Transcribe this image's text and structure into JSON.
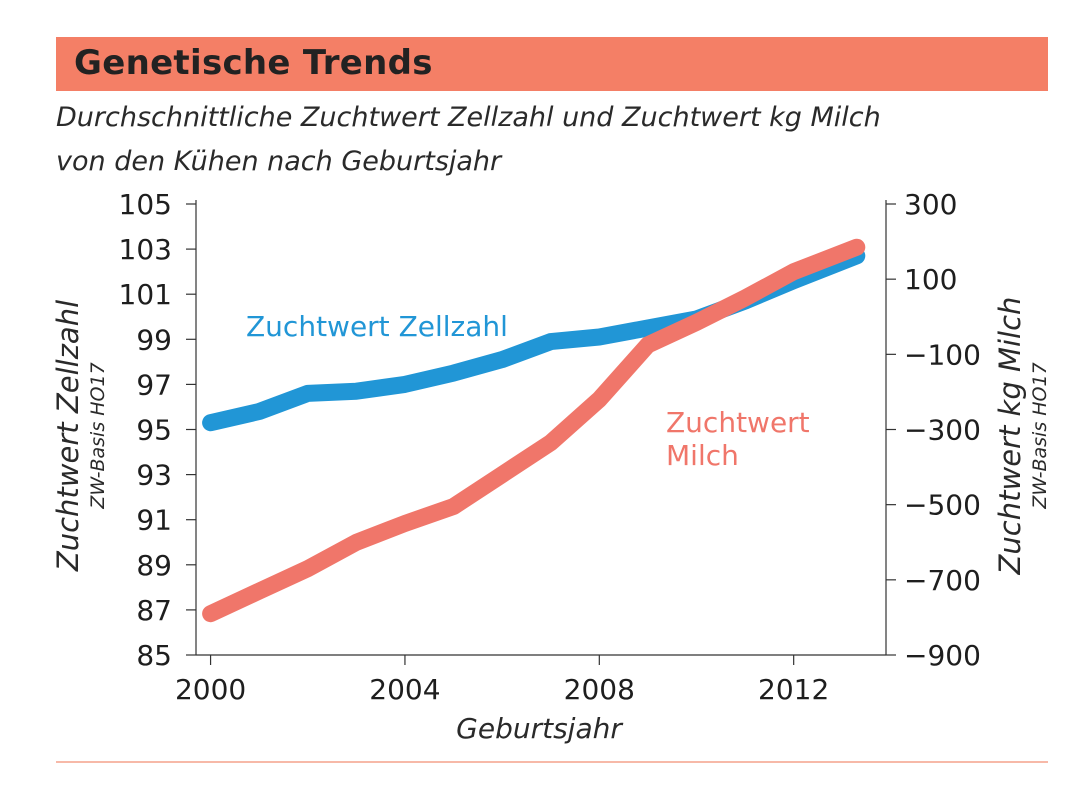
{
  "header": {
    "title": "Genetische Trends"
  },
  "subtitle": {
    "line1": "Durchschnittliche Zuchtwert Zellzahl und Zuchtwert kg Milch",
    "line2": "von den Kühen nach Geburtsjahr"
  },
  "colors": {
    "accent": "#f47f66",
    "blue": "#2196d6",
    "salmon": "#f0766a",
    "axis": "#333333"
  },
  "chart_data": {
    "type": "line",
    "title": "Genetische Trends",
    "subtitle": "Durchschnittliche Zuchtwert Zellzahl und Zuchtwert kg Milch von den Kühen nach Geburtsjahr",
    "xlabel": "Geburtsjahr",
    "xlim": [
      1999.7,
      2013.9
    ],
    "xticks": [
      "2000",
      "2004",
      "2008",
      "2012"
    ],
    "left_axis": {
      "label": "Zuchtwert Zellzahl",
      "sublabel": "ZW-Basis HO17",
      "ylim": [
        85,
        105
      ],
      "ticks": [
        "85",
        "87",
        "89",
        "91",
        "93",
        "95",
        "97",
        "99",
        "101",
        "103",
        "105"
      ]
    },
    "right_axis": {
      "label": "Zuchtwert kg Milch",
      "sublabel": "ZW-Basis HO17",
      "ylim": [
        -900,
        300
      ],
      "ticks": [
        "−900",
        "−700",
        "−500",
        "−300",
        "−100",
        "100",
        "300"
      ]
    },
    "series": [
      {
        "name": "Zuchtwert Zellzahl",
        "axis": "left",
        "color": "#2196d6",
        "label_lines": [
          "Zuchtwert Zellzahl"
        ],
        "x": [
          2000,
          2001,
          2002,
          2003,
          2004,
          2005,
          2006,
          2007,
          2008,
          2009,
          2010,
          2011,
          2012,
          2013.3
        ],
        "values": [
          95.3,
          95.8,
          96.6,
          96.7,
          97.0,
          97.5,
          98.1,
          98.9,
          99.1,
          99.5,
          99.9,
          100.7,
          101.6,
          102.7
        ]
      },
      {
        "name": "Zuchtwert Milch",
        "axis": "right",
        "color": "#f0766a",
        "label_lines": [
          "Zuchtwert",
          "Milch"
        ],
        "x": [
          2000,
          2001,
          2002,
          2003,
          2004,
          2005,
          2006,
          2007,
          2008,
          2009,
          2010,
          2011,
          2012,
          2013.3
        ],
        "values": [
          -790,
          -730,
          -670,
          -600,
          -550,
          -505,
          -420,
          -335,
          -220,
          -75,
          -15,
          50,
          120,
          185
        ]
      }
    ]
  }
}
